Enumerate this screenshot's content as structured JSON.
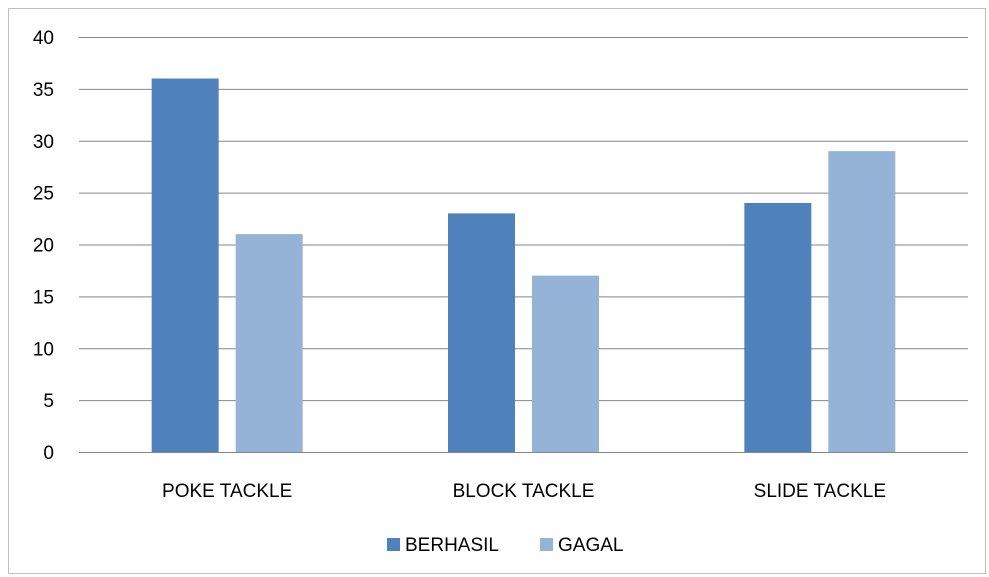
{
  "chart_data": {
    "type": "bar",
    "categories": [
      "POKE TACKLE",
      "BLOCK TACKLE",
      "SLIDE TACKLE"
    ],
    "series": [
      {
        "name": "BERHASIL",
        "values": [
          36,
          23,
          24
        ],
        "color": "#4f81bd"
      },
      {
        "name": "GAGAL",
        "values": [
          21,
          17,
          29
        ],
        "color": "#95b3d7"
      }
    ],
    "title": "",
    "xlabel": "",
    "ylabel": "",
    "ylim": [
      0,
      40
    ],
    "yticks": [
      "0",
      "5",
      "10",
      "15",
      "20",
      "25",
      "30",
      "35",
      "40"
    ],
    "grid": true,
    "legend_position": "bottom",
    "gridline_color": "#868686"
  }
}
